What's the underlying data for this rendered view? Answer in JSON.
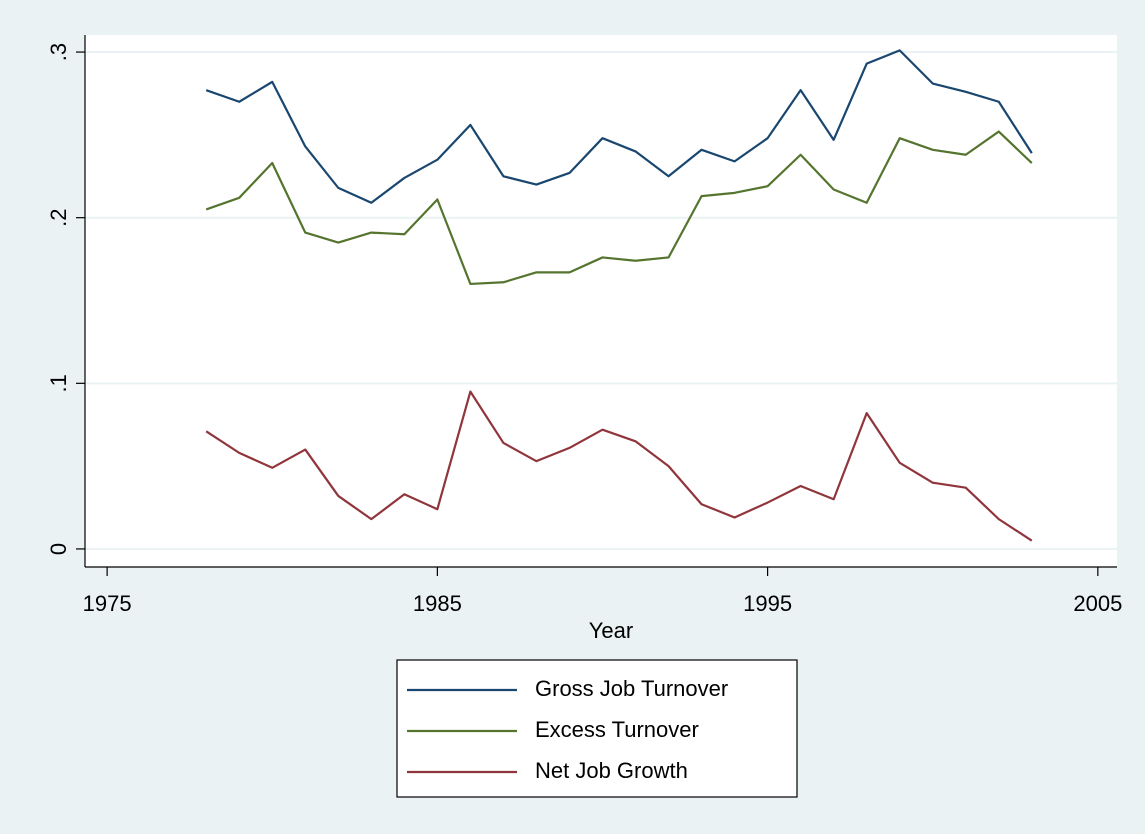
{
  "chart_data": {
    "type": "line",
    "x_label": "Year",
    "x": [
      1978,
      1979,
      1980,
      1981,
      1982,
      1983,
      1984,
      1985,
      1986,
      1987,
      1988,
      1989,
      1990,
      1991,
      1992,
      1993,
      1994,
      1995,
      1996,
      1997,
      1998,
      1999,
      2000,
      2001,
      2002,
      2003
    ],
    "series": [
      {
        "name": "Gross Job Turnover",
        "color": "#1a476f",
        "values": [
          0.277,
          0.27,
          0.282,
          0.243,
          0.218,
          0.209,
          0.224,
          0.235,
          0.256,
          0.225,
          0.22,
          0.227,
          0.248,
          0.24,
          0.225,
          0.241,
          0.234,
          0.248,
          0.277,
          0.247,
          0.293,
          0.301,
          0.281,
          0.276,
          0.27,
          0.239
        ]
      },
      {
        "name": "Excess Turnover",
        "color": "#55752f",
        "values": [
          0.205,
          0.212,
          0.233,
          0.191,
          0.185,
          0.191,
          0.19,
          0.211,
          0.16,
          0.161,
          0.167,
          0.167,
          0.176,
          0.174,
          0.176,
          0.213,
          0.215,
          0.219,
          0.238,
          0.217,
          0.209,
          0.248,
          0.241,
          0.238,
          0.252,
          0.233
        ]
      },
      {
        "name": "Net Job Growth",
        "color": "#90353b",
        "values": [
          0.071,
          0.058,
          0.049,
          0.06,
          0.032,
          0.018,
          0.033,
          0.024,
          0.095,
          0.064,
          0.053,
          0.061,
          0.072,
          0.065,
          0.05,
          0.027,
          0.019,
          0.028,
          0.038,
          0.03,
          0.082,
          0.052,
          0.04,
          0.037,
          0.018,
          0.005
        ]
      }
    ],
    "xlim": [
      1974.33,
      2005.58
    ],
    "xticks": [
      1975,
      1985,
      1995,
      2005
    ],
    "ylim": [
      -0.0109,
      0.3103
    ],
    "yticks": [
      0,
      {
        "value": 0.1,
        "label": ".1"
      },
      {
        "value": 0.2,
        "label": ".2"
      },
      {
        "value": 0.3,
        "label": ".3"
      }
    ],
    "grid": true,
    "legend": "bottom"
  }
}
